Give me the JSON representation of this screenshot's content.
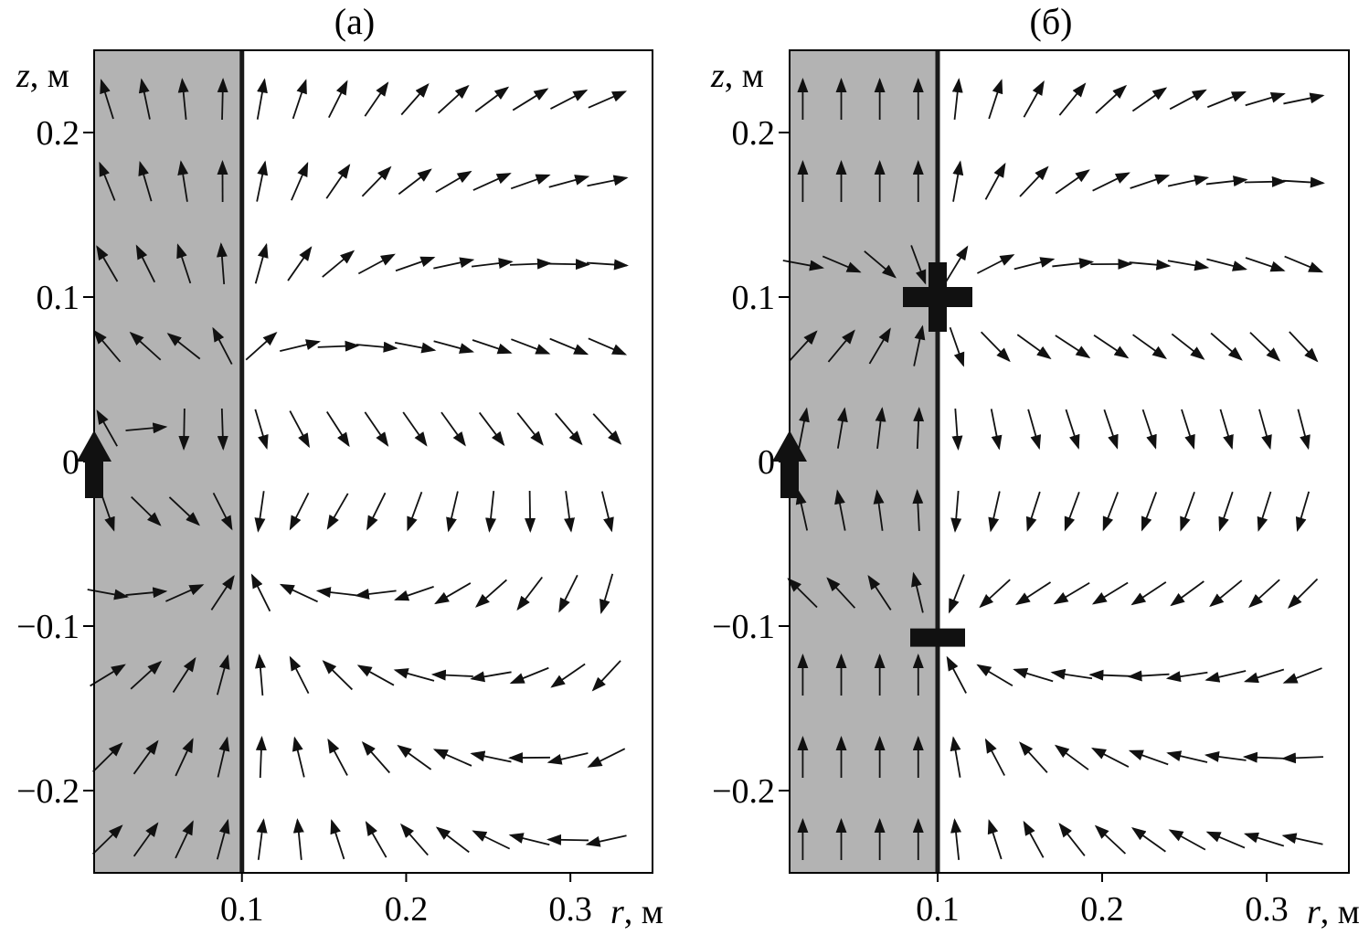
{
  "chart_data": [
    {
      "type": "vector-field",
      "title": "(а)",
      "xlabel_var": "r",
      "xlabel_unit": ", м",
      "ylabel_var": "z",
      "ylabel_unit": ", м",
      "xlim": [
        0.01,
        0.35
      ],
      "ylim": [
        -0.25,
        0.25
      ],
      "xticks": [
        0.1,
        0.2,
        0.3
      ],
      "xtick_labels": [
        "0.1",
        "0.2",
        "0.3"
      ],
      "yticks": [
        0.2,
        0.1,
        0,
        -0.1,
        -0.2
      ],
      "ytick_labels": [
        "0.2",
        "0.1",
        "0",
        "−0.1",
        "−0.2"
      ],
      "region_boundary_r": 0.1,
      "shaded_region": [
        0.01,
        0.1
      ],
      "big_arrow": {
        "r": 0.01,
        "z": 0,
        "direction": "up"
      },
      "charges": [],
      "colors": {
        "shaded": "#b3b3b3",
        "arrow": "#111111",
        "boundary": "#1a1a1a"
      }
    },
    {
      "type": "vector-field",
      "title": "(б)",
      "xlabel_var": "r",
      "xlabel_unit": ", м",
      "ylabel_var": "z",
      "ylabel_unit": ", м",
      "xlim": [
        0.01,
        0.35
      ],
      "ylim": [
        -0.25,
        0.25
      ],
      "xticks": [
        0.1,
        0.2,
        0.3
      ],
      "xtick_labels": [
        "0.1",
        "0.2",
        "0.3"
      ],
      "yticks": [
        0.2,
        0.1,
        0,
        -0.1,
        -0.2
      ],
      "ytick_labels": [
        "0.2",
        "0.1",
        "0",
        "−0.1",
        "−0.2"
      ],
      "region_boundary_r": 0.1,
      "shaded_region": [
        0.01,
        0.1
      ],
      "big_arrow": {
        "r": 0.01,
        "z": 0,
        "direction": "up"
      },
      "charges": [
        {
          "sign": "plus",
          "r": 0.1,
          "z": 0.1
        },
        {
          "sign": "minus",
          "r": 0.1,
          "z": -0.107
        }
      ],
      "colors": {
        "shaded": "#b3b3b3",
        "arrow": "#111111",
        "boundary": "#1a1a1a"
      }
    }
  ]
}
